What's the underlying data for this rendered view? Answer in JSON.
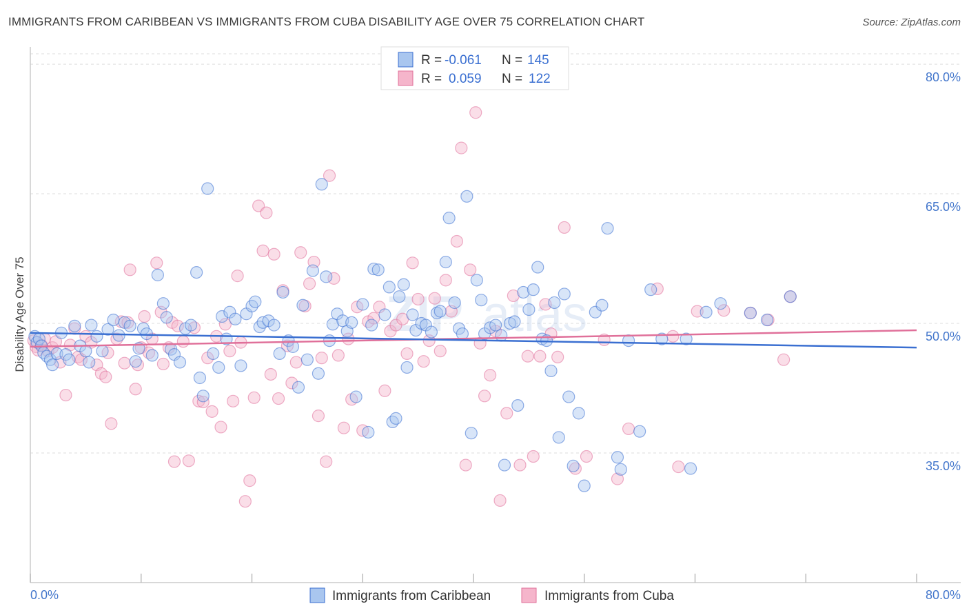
{
  "title": "IMMIGRANTS FROM CARIBBEAN VS IMMIGRANTS FROM CUBA DISABILITY AGE OVER 75 CORRELATION CHART",
  "source": "Source: ZipAtlas.com",
  "colors": {
    "blue": "#3a6fd1",
    "blue_fill": "#a9c6ef",
    "pink": "#e0709a",
    "pink_fill": "#f5b5cb",
    "grid": "#dddddd",
    "tick_label": "#4477cc"
  },
  "chart_data": {
    "type": "scatter",
    "title": "IMMIGRANTS FROM CARIBBEAN VS IMMIGRANTS FROM CUBA DISABILITY AGE OVER 75 CORRELATION CHART",
    "xlabel": "",
    "ylabel": "Disability Age Over 75",
    "xlim": [
      0,
      80
    ],
    "ylim": [
      20,
      82
    ],
    "x_tick_labels": [
      "0.0%",
      "80.0%"
    ],
    "y_ticks": [
      35,
      50,
      65,
      80
    ],
    "y_tick_labels": [
      "35.0%",
      "50.0%",
      "65.0%",
      "80.0%"
    ],
    "legend": {
      "entries": [
        {
          "r_label": "R =",
          "r_value": "-0.061",
          "n_label": "N =",
          "n_value": "145"
        },
        {
          "r_label": "R =",
          "r_value": "0.059",
          "n_label": "N =",
          "n_value": "122"
        }
      ]
    },
    "series": [
      {
        "name": "Immigrants from Caribbean",
        "color": "#3a6fd1",
        "trend": [
          [
            0,
            48.9
          ],
          [
            80,
            47.2
          ]
        ],
        "points": [
          [
            0.4,
            48.5
          ],
          [
            0.6,
            47.8
          ],
          [
            0.8,
            48.2
          ],
          [
            1.0,
            47.4
          ],
          [
            1.2,
            46.6
          ],
          [
            1.5,
            46.2
          ],
          [
            1.8,
            45.8
          ],
          [
            2.0,
            45.2
          ],
          [
            2.4,
            46.5
          ],
          [
            2.8,
            48.9
          ],
          [
            3.2,
            46.4
          ],
          [
            3.5,
            45.8
          ],
          [
            4.0,
            49.7
          ],
          [
            4.5,
            47.4
          ],
          [
            5.0,
            46.8
          ],
          [
            5.3,
            45.5
          ],
          [
            5.5,
            49.8
          ],
          [
            6.0,
            48.5
          ],
          [
            6.5,
            46.8
          ],
          [
            7.0,
            49.3
          ],
          [
            7.5,
            50.4
          ],
          [
            8.0,
            48.6
          ],
          [
            8.5,
            50.1
          ],
          [
            9.0,
            49.7
          ],
          [
            9.5,
            45.6
          ],
          [
            9.8,
            47.1
          ],
          [
            10.2,
            49.4
          ],
          [
            10.5,
            48.8
          ],
          [
            11.0,
            46.3
          ],
          [
            11.5,
            55.6
          ],
          [
            12.0,
            52.3
          ],
          [
            12.3,
            50.7
          ],
          [
            12.7,
            47.0
          ],
          [
            13.0,
            46.4
          ],
          [
            13.5,
            45.5
          ],
          [
            14.0,
            49.4
          ],
          [
            14.5,
            49.8
          ],
          [
            15.0,
            55.9
          ],
          [
            15.3,
            43.7
          ],
          [
            15.6,
            41.6
          ],
          [
            16.0,
            65.6
          ],
          [
            16.5,
            46.5
          ],
          [
            17.0,
            44.9
          ],
          [
            17.3,
            50.8
          ],
          [
            17.7,
            48.2
          ],
          [
            18.0,
            51.3
          ],
          [
            18.5,
            50.5
          ],
          [
            19.0,
            45.1
          ],
          [
            19.5,
            51.1
          ],
          [
            20.0,
            52.0
          ],
          [
            20.3,
            52.5
          ],
          [
            20.7,
            49.6
          ],
          [
            21.0,
            50.1
          ],
          [
            21.5,
            50.3
          ],
          [
            22.0,
            49.8
          ],
          [
            22.5,
            46.5
          ],
          [
            22.8,
            53.6
          ],
          [
            23.3,
            48.0
          ],
          [
            23.7,
            47.3
          ],
          [
            24.2,
            42.6
          ],
          [
            24.6,
            52.1
          ],
          [
            25.0,
            45.8
          ],
          [
            25.5,
            56.1
          ],
          [
            26.0,
            44.2
          ],
          [
            26.3,
            66.1
          ],
          [
            26.7,
            55.4
          ],
          [
            27.0,
            48.0
          ],
          [
            27.3,
            49.9
          ],
          [
            27.7,
            51.1
          ],
          [
            28.2,
            50.3
          ],
          [
            28.6,
            49.1
          ],
          [
            29.0,
            50.1
          ],
          [
            29.4,
            41.5
          ],
          [
            30.0,
            52.2
          ],
          [
            30.5,
            37.4
          ],
          [
            30.8,
            49.8
          ],
          [
            31.0,
            56.3
          ],
          [
            31.4,
            56.2
          ],
          [
            32.0,
            51.0
          ],
          [
            32.4,
            54.2
          ],
          [
            32.7,
            38.6
          ],
          [
            33.0,
            39.0
          ],
          [
            33.3,
            53.1
          ],
          [
            33.7,
            54.5
          ],
          [
            34.0,
            44.9
          ],
          [
            34.5,
            51.0
          ],
          [
            34.8,
            49.2
          ],
          [
            35.3,
            50.0
          ],
          [
            35.7,
            49.8
          ],
          [
            36.2,
            49.0
          ],
          [
            36.7,
            51.2
          ],
          [
            37.0,
            51.4
          ],
          [
            37.5,
            57.1
          ],
          [
            37.8,
            62.2
          ],
          [
            38.3,
            52.4
          ],
          [
            38.7,
            49.4
          ],
          [
            39.0,
            48.8
          ],
          [
            39.4,
            64.7
          ],
          [
            39.8,
            37.3
          ],
          [
            40.3,
            55.0
          ],
          [
            40.7,
            52.7
          ],
          [
            41.0,
            48.8
          ],
          [
            41.5,
            49.5
          ],
          [
            42.0,
            49.8
          ],
          [
            42.5,
            48.6
          ],
          [
            42.8,
            33.6
          ],
          [
            43.3,
            50.0
          ],
          [
            43.7,
            50.2
          ],
          [
            44.0,
            40.5
          ],
          [
            44.5,
            53.6
          ],
          [
            45.0,
            51.6
          ],
          [
            45.4,
            53.9
          ],
          [
            45.8,
            56.5
          ],
          [
            46.2,
            48.2
          ],
          [
            46.6,
            48.0
          ],
          [
            47.0,
            44.5
          ],
          [
            47.3,
            52.4
          ],
          [
            47.7,
            36.8
          ],
          [
            48.2,
            53.4
          ],
          [
            48.6,
            41.5
          ],
          [
            49.0,
            33.5
          ],
          [
            49.5,
            39.6
          ],
          [
            50.0,
            31.2
          ],
          [
            51.0,
            51.3
          ],
          [
            51.6,
            52.1
          ],
          [
            52.1,
            61.0
          ],
          [
            53.0,
            34.5
          ],
          [
            53.3,
            33.1
          ],
          [
            54.0,
            48.0
          ],
          [
            55.0,
            37.5
          ],
          [
            56.0,
            53.9
          ],
          [
            57.0,
            48.2
          ],
          [
            59.2,
            48.2
          ],
          [
            59.6,
            33.2
          ],
          [
            61.0,
            51.3
          ],
          [
            62.3,
            52.3
          ],
          [
            65.0,
            51.2
          ],
          [
            66.5,
            50.4
          ],
          [
            68.6,
            53.1
          ]
        ]
      },
      {
        "name": "Immigrants from Cuba",
        "color": "#e0709a",
        "trend": [
          [
            0,
            47.3
          ],
          [
            80,
            49.2
          ]
        ],
        "points": [
          [
            0.3,
            48.0
          ],
          [
            0.5,
            47.3
          ],
          [
            0.7,
            46.9
          ],
          [
            1.0,
            47.5
          ],
          [
            1.3,
            48.2
          ],
          [
            1.6,
            46.8
          ],
          [
            2.0,
            47.2
          ],
          [
            2.3,
            47.9
          ],
          [
            2.7,
            45.5
          ],
          [
            3.2,
            41.7
          ],
          [
            3.6,
            47.5
          ],
          [
            4.0,
            49.4
          ],
          [
            4.3,
            46.1
          ],
          [
            4.6,
            45.8
          ],
          [
            5.0,
            48.5
          ],
          [
            5.5,
            47.8
          ],
          [
            6.0,
            45.2
          ],
          [
            6.4,
            44.2
          ],
          [
            6.8,
            43.8
          ],
          [
            7.0,
            46.6
          ],
          [
            7.3,
            38.4
          ],
          [
            7.8,
            48.2
          ],
          [
            8.2,
            50.2
          ],
          [
            8.5,
            45.4
          ],
          [
            8.8,
            50.1
          ],
          [
            9.0,
            56.2
          ],
          [
            9.5,
            42.4
          ],
          [
            9.7,
            45.2
          ],
          [
            10.0,
            47.2
          ],
          [
            10.3,
            50.8
          ],
          [
            10.7,
            46.6
          ],
          [
            11.0,
            48.2
          ],
          [
            11.4,
            57.0
          ],
          [
            11.8,
            51.3
          ],
          [
            12.0,
            45.3
          ],
          [
            12.5,
            47.2
          ],
          [
            12.8,
            50.1
          ],
          [
            13.0,
            34.0
          ],
          [
            13.3,
            49.7
          ],
          [
            13.8,
            47.9
          ],
          [
            14.3,
            34.1
          ],
          [
            14.8,
            49.5
          ],
          [
            15.2,
            41.0
          ],
          [
            15.6,
            40.9
          ],
          [
            16.0,
            46.0
          ],
          [
            16.4,
            39.8
          ],
          [
            16.8,
            48.5
          ],
          [
            17.2,
            38.0
          ],
          [
            17.6,
            49.9
          ],
          [
            18.0,
            46.8
          ],
          [
            18.3,
            41.0
          ],
          [
            18.7,
            55.5
          ],
          [
            19.0,
            47.8
          ],
          [
            19.4,
            29.4
          ],
          [
            19.8,
            31.8
          ],
          [
            20.2,
            41.4
          ],
          [
            20.6,
            63.6
          ],
          [
            21.0,
            58.4
          ],
          [
            21.3,
            62.8
          ],
          [
            21.7,
            44.1
          ],
          [
            22.0,
            58.0
          ],
          [
            22.4,
            41.3
          ],
          [
            22.8,
            53.8
          ],
          [
            23.2,
            47.4
          ],
          [
            23.6,
            43.1
          ],
          [
            24.0,
            45.5
          ],
          [
            24.4,
            58.2
          ],
          [
            24.8,
            52.0
          ],
          [
            25.2,
            54.6
          ],
          [
            25.6,
            57.1
          ],
          [
            26.0,
            39.3
          ],
          [
            26.3,
            46.0
          ],
          [
            26.7,
            34.0
          ],
          [
            27.0,
            67.1
          ],
          [
            27.4,
            55.2
          ],
          [
            27.8,
            46.3
          ],
          [
            28.3,
            37.9
          ],
          [
            28.7,
            48.2
          ],
          [
            29.0,
            41.2
          ],
          [
            29.5,
            51.9
          ],
          [
            30.0,
            37.6
          ],
          [
            30.5,
            50.2
          ],
          [
            31.0,
            50.6
          ],
          [
            31.5,
            51.9
          ],
          [
            32.0,
            42.2
          ],
          [
            32.5,
            49.1
          ],
          [
            33.0,
            49.8
          ],
          [
            33.6,
            50.5
          ],
          [
            34.0,
            46.5
          ],
          [
            34.5,
            57.0
          ],
          [
            35.0,
            52.8
          ],
          [
            35.5,
            45.6
          ],
          [
            36.0,
            48.0
          ],
          [
            36.5,
            52.9
          ],
          [
            37.0,
            46.8
          ],
          [
            37.5,
            55.0
          ],
          [
            38.0,
            51.4
          ],
          [
            38.5,
            59.5
          ],
          [
            38.9,
            70.3
          ],
          [
            39.3,
            33.6
          ],
          [
            39.7,
            56.2
          ],
          [
            40.2,
            74.4
          ],
          [
            40.6,
            47.7
          ],
          [
            41.0,
            41.6
          ],
          [
            41.5,
            44.0
          ],
          [
            42.0,
            49.1
          ],
          [
            42.4,
            29.5
          ],
          [
            43.0,
            39.6
          ],
          [
            43.6,
            53.2
          ],
          [
            44.2,
            33.6
          ],
          [
            44.9,
            46.2
          ],
          [
            45.4,
            34.6
          ],
          [
            46.0,
            46.2
          ],
          [
            46.5,
            52.2
          ],
          [
            47.0,
            48.8
          ],
          [
            47.6,
            46.1
          ],
          [
            48.2,
            61.1
          ],
          [
            49.2,
            33.2
          ],
          [
            50.2,
            34.6
          ],
          [
            51.8,
            48.1
          ],
          [
            53.0,
            32.0
          ],
          [
            54.0,
            37.8
          ],
          [
            56.6,
            54.0
          ],
          [
            58.0,
            48.5
          ],
          [
            58.5,
            33.4
          ],
          [
            60.2,
            51.4
          ],
          [
            62.6,
            51.5
          ],
          [
            65.0,
            51.2
          ],
          [
            66.6,
            50.4
          ],
          [
            68.0,
            45.8
          ],
          [
            68.6,
            53.1
          ]
        ]
      }
    ]
  },
  "bottom_legend": {
    "caribbean": "Immigrants from Caribbean",
    "cuba": "Immigrants from Cuba"
  }
}
